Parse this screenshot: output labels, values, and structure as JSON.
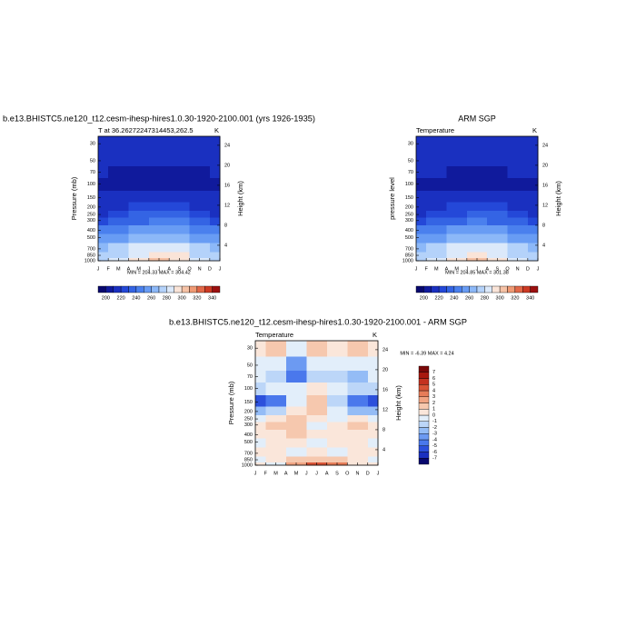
{
  "chart_data": [
    {
      "type": "contour",
      "title": "b.e13.BHISTC5.ne120_t12.cesm-ihesp-hires1.0.30-1920-2100.001 (yrs 1926-1935)",
      "subtitle_left": "T at 36.26272247314453,262.5",
      "subtitle_right": "K",
      "ylabel": "Pressure (mb)",
      "y2label": "Height (km)",
      "stats": "MIN = 204.33 MAX = 304.42",
      "xlim": [
        0,
        12
      ],
      "xticks": [
        {
          "value": 0,
          "label": "J"
        },
        {
          "value": 1,
          "label": "F"
        },
        {
          "value": 2,
          "label": "M"
        },
        {
          "value": 3,
          "label": "A"
        },
        {
          "value": 4,
          "label": "M"
        },
        {
          "value": 5,
          "label": "J"
        },
        {
          "value": 6,
          "label": "J"
        },
        {
          "value": 7,
          "label": "A"
        },
        {
          "value": 8,
          "label": "S"
        },
        {
          "value": 9,
          "label": "O"
        },
        {
          "value": 10,
          "label": "N"
        },
        {
          "value": 11,
          "label": "D"
        },
        {
          "value": 12,
          "label": "J"
        }
      ],
      "ylim": [
        1000,
        24
      ],
      "ylog": true,
      "yticks": [
        30,
        50,
        70,
        100,
        150,
        200,
        250,
        300,
        400,
        500,
        700,
        850,
        1000
      ],
      "y2lim": [
        0.9,
        25.8
      ],
      "y2ticks": [
        4,
        8,
        12,
        16,
        20,
        24
      ],
      "x": [
        0,
        2,
        4,
        6,
        8,
        10,
        12
      ],
      "y": [
        30,
        50,
        70,
        100,
        150,
        200,
        250,
        300,
        400,
        500,
        700,
        850,
        1000
      ],
      "z": [
        [
          215,
          216,
          217,
          218,
          217,
          216,
          215
        ],
        [
          213,
          212,
          211,
          212,
          213,
          213,
          213
        ],
        [
          210,
          209,
          208,
          207,
          208,
          209,
          210
        ],
        [
          208,
          207,
          206,
          205,
          206,
          207,
          208
        ],
        [
          210,
          211,
          213,
          214,
          213,
          211,
          210
        ],
        [
          212,
          216,
          221,
          224,
          222,
          216,
          212
        ],
        [
          218,
          223,
          230,
          234,
          231,
          223,
          218
        ],
        [
          226,
          231,
          239,
          243,
          240,
          231,
          226
        ],
        [
          240,
          245,
          253,
          257,
          254,
          245,
          240
        ],
        [
          250,
          255,
          264,
          268,
          264,
          255,
          250
        ],
        [
          265,
          271,
          280,
          285,
          281,
          271,
          265
        ],
        [
          272,
          279,
          289,
          295,
          290,
          279,
          272
        ],
        [
          278,
          285,
          297,
          303,
          298,
          285,
          278
        ]
      ],
      "colorbar": {
        "orientation": "horizontal",
        "levels": [
          200,
          210,
          220,
          230,
          240,
          250,
          260,
          270,
          280,
          290,
          300,
          310,
          320,
          330,
          340
        ],
        "labels": [
          200,
          220,
          240,
          260,
          280,
          300,
          320,
          340
        ],
        "colors": [
          "#08086e",
          "#101a9c",
          "#1a30c0",
          "#2448d8",
          "#3464e4",
          "#4a80ee",
          "#689cf4",
          "#8cb8f8",
          "#b4d2fa",
          "#dce9fa",
          "#fae4d8",
          "#f6c2a6",
          "#f09a74",
          "#e26848",
          "#cc3a24",
          "#9c1010"
        ]
      }
    },
    {
      "type": "contour",
      "title": "ARM SGP",
      "subtitle_left": "Temperature",
      "subtitle_right": "K",
      "ylabel": "pressure level",
      "y2label": "Height (km)",
      "stats": "MIN = 204.85 MAX = 301.38",
      "xlim": [
        0,
        12
      ],
      "xticks": [
        {
          "value": 0,
          "label": "J"
        },
        {
          "value": 1,
          "label": "F"
        },
        {
          "value": 2,
          "label": "M"
        },
        {
          "value": 3,
          "label": "A"
        },
        {
          "value": 4,
          "label": "M"
        },
        {
          "value": 5,
          "label": "J"
        },
        {
          "value": 6,
          "label": "J"
        },
        {
          "value": 7,
          "label": "A"
        },
        {
          "value": 8,
          "label": "S"
        },
        {
          "value": 9,
          "label": "O"
        },
        {
          "value": 10,
          "label": "N"
        },
        {
          "value": 11,
          "label": "D"
        },
        {
          "value": 12,
          "label": "J"
        }
      ],
      "ylim": [
        1000,
        24
      ],
      "ylog": true,
      "yticks": [
        30,
        50,
        70,
        100,
        150,
        200,
        250,
        300,
        400,
        500,
        700,
        850,
        1000
      ],
      "y2lim": [
        0.9,
        25.8
      ],
      "y2ticks": [
        4,
        8,
        12,
        16,
        20,
        24
      ],
      "x": [
        0,
        2,
        4,
        6,
        8,
        10,
        12
      ],
      "y": [
        30,
        50,
        70,
        100,
        150,
        200,
        250,
        300,
        400,
        500,
        700,
        850,
        1000
      ],
      "z": [
        [
          215,
          216,
          217,
          218,
          217,
          216,
          215
        ],
        [
          213,
          213,
          213,
          213,
          214,
          213,
          213
        ],
        [
          211,
          210,
          209,
          208,
          209,
          210,
          211
        ],
        [
          209,
          208,
          207,
          205,
          207,
          208,
          209
        ],
        [
          212,
          212,
          213,
          214,
          213,
          212,
          212
        ],
        [
          213,
          217,
          221,
          223,
          222,
          217,
          213
        ],
        [
          218,
          223,
          229,
          234,
          230,
          223,
          218
        ],
        [
          226,
          230,
          238,
          243,
          239,
          230,
          226
        ],
        [
          240,
          245,
          252,
          257,
          253,
          245,
          240
        ],
        [
          250,
          255,
          263,
          268,
          264,
          255,
          250
        ],
        [
          265,
          270,
          280,
          284,
          280,
          271,
          265
        ],
        [
          272,
          278,
          288,
          294,
          289,
          278,
          272
        ],
        [
          277,
          284,
          295,
          300,
          296,
          284,
          277
        ]
      ],
      "colorbar": {
        "orientation": "horizontal",
        "levels": [
          200,
          210,
          220,
          230,
          240,
          250,
          260,
          270,
          280,
          290,
          300,
          310,
          320,
          330,
          340
        ],
        "labels": [
          200,
          220,
          240,
          260,
          280,
          300,
          320,
          340
        ],
        "colors": [
          "#08086e",
          "#101a9c",
          "#1a30c0",
          "#2448d8",
          "#3464e4",
          "#4a80ee",
          "#689cf4",
          "#8cb8f8",
          "#b4d2fa",
          "#dce9fa",
          "#fae4d8",
          "#f6c2a6",
          "#f09a74",
          "#e26848",
          "#cc3a24",
          "#9c1010"
        ]
      }
    },
    {
      "type": "contour",
      "title": "b.e13.BHISTC5.ne120_t12.cesm-ihesp-hires1.0.30-1920-2100.001 - ARM SGP",
      "subtitle_left": "Temperature",
      "subtitle_right": "K",
      "ylabel": "Pressure (mb)",
      "y2label": "Height (km)",
      "stats": "MIN = -6.39 MAX =  4.24",
      "xlim": [
        0,
        12
      ],
      "xticks": [
        {
          "value": 0,
          "label": "J"
        },
        {
          "value": 1,
          "label": "F"
        },
        {
          "value": 2,
          "label": "M"
        },
        {
          "value": 3,
          "label": "A"
        },
        {
          "value": 4,
          "label": "M"
        },
        {
          "value": 5,
          "label": "J"
        },
        {
          "value": 6,
          "label": "J"
        },
        {
          "value": 7,
          "label": "A"
        },
        {
          "value": 8,
          "label": "S"
        },
        {
          "value": 9,
          "label": "O"
        },
        {
          "value": 10,
          "label": "N"
        },
        {
          "value": 11,
          "label": "D"
        },
        {
          "value": 12,
          "label": "J"
        }
      ],
      "ylim": [
        1000,
        24
      ],
      "ylog": true,
      "yticks": [
        30,
        50,
        70,
        100,
        150,
        200,
        250,
        300,
        400,
        500,
        700,
        850,
        1000
      ],
      "y2lim": [
        0.9,
        25.8
      ],
      "y2ticks": [
        4,
        8,
        12,
        16,
        20,
        24
      ],
      "x": [
        0,
        2,
        4,
        6,
        8,
        10,
        12
      ],
      "y": [
        30,
        50,
        70,
        100,
        150,
        200,
        250,
        300,
        400,
        500,
        700,
        850,
        1000
      ],
      "z": [
        [
          0,
          1,
          -1,
          1,
          0,
          1,
          0
        ],
        [
          -1,
          -1,
          -4,
          -1,
          -1,
          -1,
          -1
        ],
        [
          -1,
          -2,
          -5,
          -2,
          -2,
          -3,
          -1
        ],
        [
          -2,
          -1,
          -1,
          0,
          -1,
          -2,
          -2
        ],
        [
          -6,
          -5,
          -1,
          1,
          -2,
          -5,
          -6
        ],
        [
          -3,
          -2,
          0,
          1,
          -1,
          -3,
          -3
        ],
        [
          -1,
          0,
          1,
          0,
          -1,
          0,
          -1
        ],
        [
          0,
          1,
          1,
          -1,
          0,
          1,
          0
        ],
        [
          0,
          0,
          1,
          0,
          0,
          0,
          0
        ],
        [
          -1,
          0,
          0,
          -1,
          0,
          0,
          -1
        ],
        [
          0,
          0,
          -1,
          0,
          -1,
          0,
          0
        ],
        [
          -1,
          0,
          1,
          1,
          1,
          0,
          -1
        ],
        [
          0,
          -1,
          2,
          4,
          3,
          0,
          0
        ]
      ],
      "colorbar": {
        "orientation": "vertical",
        "levels": [
          -7,
          -6,
          -5,
          -4,
          -3,
          -2,
          -1,
          0,
          1,
          2,
          3,
          4,
          5,
          6,
          7
        ],
        "labels": [
          -7,
          -6,
          -5,
          -4,
          -3,
          -2,
          -1,
          0,
          1,
          2,
          3,
          4,
          5,
          6,
          7
        ],
        "colors": [
          "#08086e",
          "#1a30c0",
          "#2c50dc",
          "#4a78ec",
          "#6c9af2",
          "#94bcf6",
          "#bcd6f8",
          "#e2eefa",
          "#fae6da",
          "#f6c8ae",
          "#f0a482",
          "#e67c58",
          "#d85436",
          "#c43220",
          "#a8180e",
          "#7a0808"
        ]
      }
    }
  ]
}
